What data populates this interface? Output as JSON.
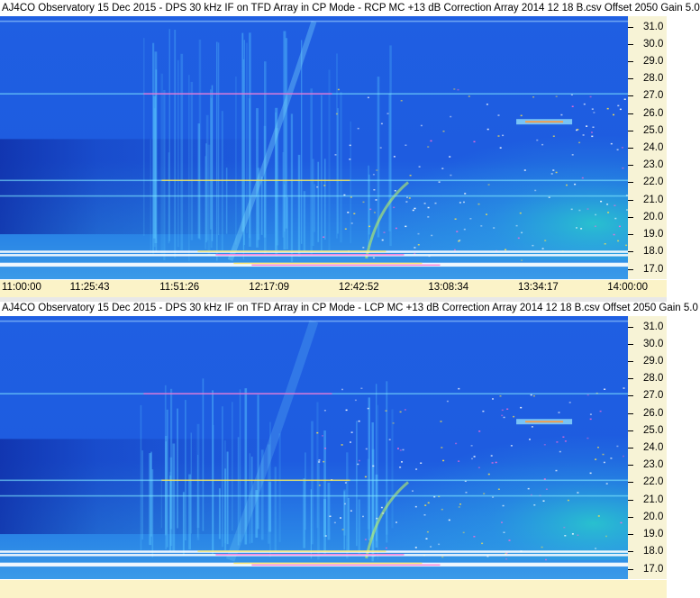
{
  "colors": {
    "background": "#1e5ce0",
    "dark_band": "#0f2fa8",
    "low_band": "#2a86e6",
    "strong_line": "#ffffff",
    "emission": "#29d6c8",
    "axis_bg": "#f7f3d6",
    "xaxis_bg": "#fbf3c8"
  },
  "chart_data": [
    {
      "type": "heatmap",
      "title": "AJ4CO Observatory 15 Dec 2015 - DPS 30 kHz IF on TFD Array in CP Mode - RCP  MC +13 dB  Correction Array 2014 12 18 B.csv  Offset 2050  Gain 5.0",
      "polarization": "RCP",
      "x_ticks": [
        "11:00:00",
        "11:25:43",
        "11:51:26",
        "12:17:09",
        "12:42:52",
        "13:08:34",
        "13:34:17",
        "14:00:00"
      ],
      "y_ticks": [
        "31.0",
        "30.0",
        "29.0",
        "28.0",
        "27.0",
        "26.0",
        "25.0",
        "24.0",
        "23.0",
        "22.0",
        "21.0",
        "20.0",
        "19.0",
        "18.0",
        "17.0"
      ],
      "ylim": [
        16.4,
        31.6
      ],
      "xlim_hours": [
        11.0,
        14.0
      ],
      "interference_lines_mhz": [
        31.3,
        27.1,
        22.1,
        21.2,
        18.0,
        17.8,
        17.3,
        17.2
      ],
      "bright_patch": {
        "freq_mhz": 25.5,
        "time_start": "13:28",
        "time_end": "13:44"
      }
    },
    {
      "type": "heatmap",
      "title": "AJ4CO Observatory 15 Dec 2015 - DPS 30 kHz IF on TFD Array in CP Mode - LCP  MC +13 dB  Correction Array 2014 12 18 B.csv  Offset 2050  Gain 5.0",
      "polarization": "LCP",
      "x_ticks": [],
      "y_ticks": [
        "31.0",
        "30.0",
        "29.0",
        "28.0",
        "27.0",
        "26.0",
        "25.0",
        "24.0",
        "23.0",
        "22.0",
        "21.0",
        "20.0",
        "19.0",
        "18.0",
        "17.0"
      ],
      "ylim": [
        16.4,
        31.6
      ],
      "xlim_hours": [
        11.0,
        14.0
      ],
      "interference_lines_mhz": [
        31.3,
        27.1,
        22.1,
        21.2,
        18.0,
        17.8,
        17.3,
        17.2
      ],
      "bright_patch": {
        "freq_mhz": 25.5,
        "time_start": "13:28",
        "time_end": "13:44"
      }
    }
  ]
}
